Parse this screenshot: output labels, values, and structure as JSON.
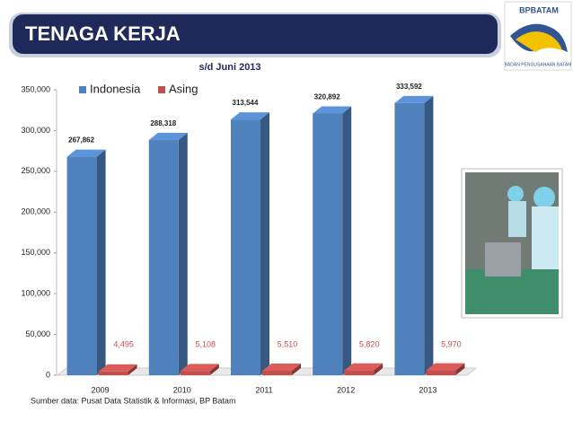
{
  "chart_data": {
    "type": "bar3d",
    "title": "TENAGA KERJA",
    "subtitle": "s/d Juni 2013",
    "source": "Sumber data: Pusat Data Statistik & Informasi, BP Batam",
    "categories": [
      "2009",
      "2010",
      "2011",
      "2012",
      "2013"
    ],
    "series": [
      {
        "name": "Indonesia",
        "color": "#4f81bd",
        "values": [
          267862,
          288318,
          313544,
          320892,
          333592
        ],
        "value_labels": [
          "267,862",
          "288,318",
          "313,544",
          "320,892",
          "333,592"
        ]
      },
      {
        "name": "Asing",
        "color": "#c0504d",
        "values": [
          4495,
          5108,
          5510,
          5820,
          5970
        ],
        "value_labels": [
          "4,495",
          "5,108",
          "5,510",
          "5,820",
          "5,970"
        ]
      }
    ],
    "ylim": [
      0,
      350000
    ],
    "yticks": [
      0,
      {
        "value": 50000,
        "label": "50,000"
      },
      {
        "value": 100000,
        "label": "100,000"
      },
      {
        "value": 150000,
        "label": "150,000"
      },
      {
        "value": 200000,
        "label": "200,000"
      },
      {
        "value": 250000,
        "label": "250,000"
      },
      {
        "value": 300000,
        "label": "300,000"
      },
      {
        "value": 350000,
        "label": "350,000"
      }
    ],
    "legend": "top-left"
  },
  "logo": {
    "name": "BPBATAM",
    "caption": "BADAN PENGUSAHAAN BATAM"
  }
}
